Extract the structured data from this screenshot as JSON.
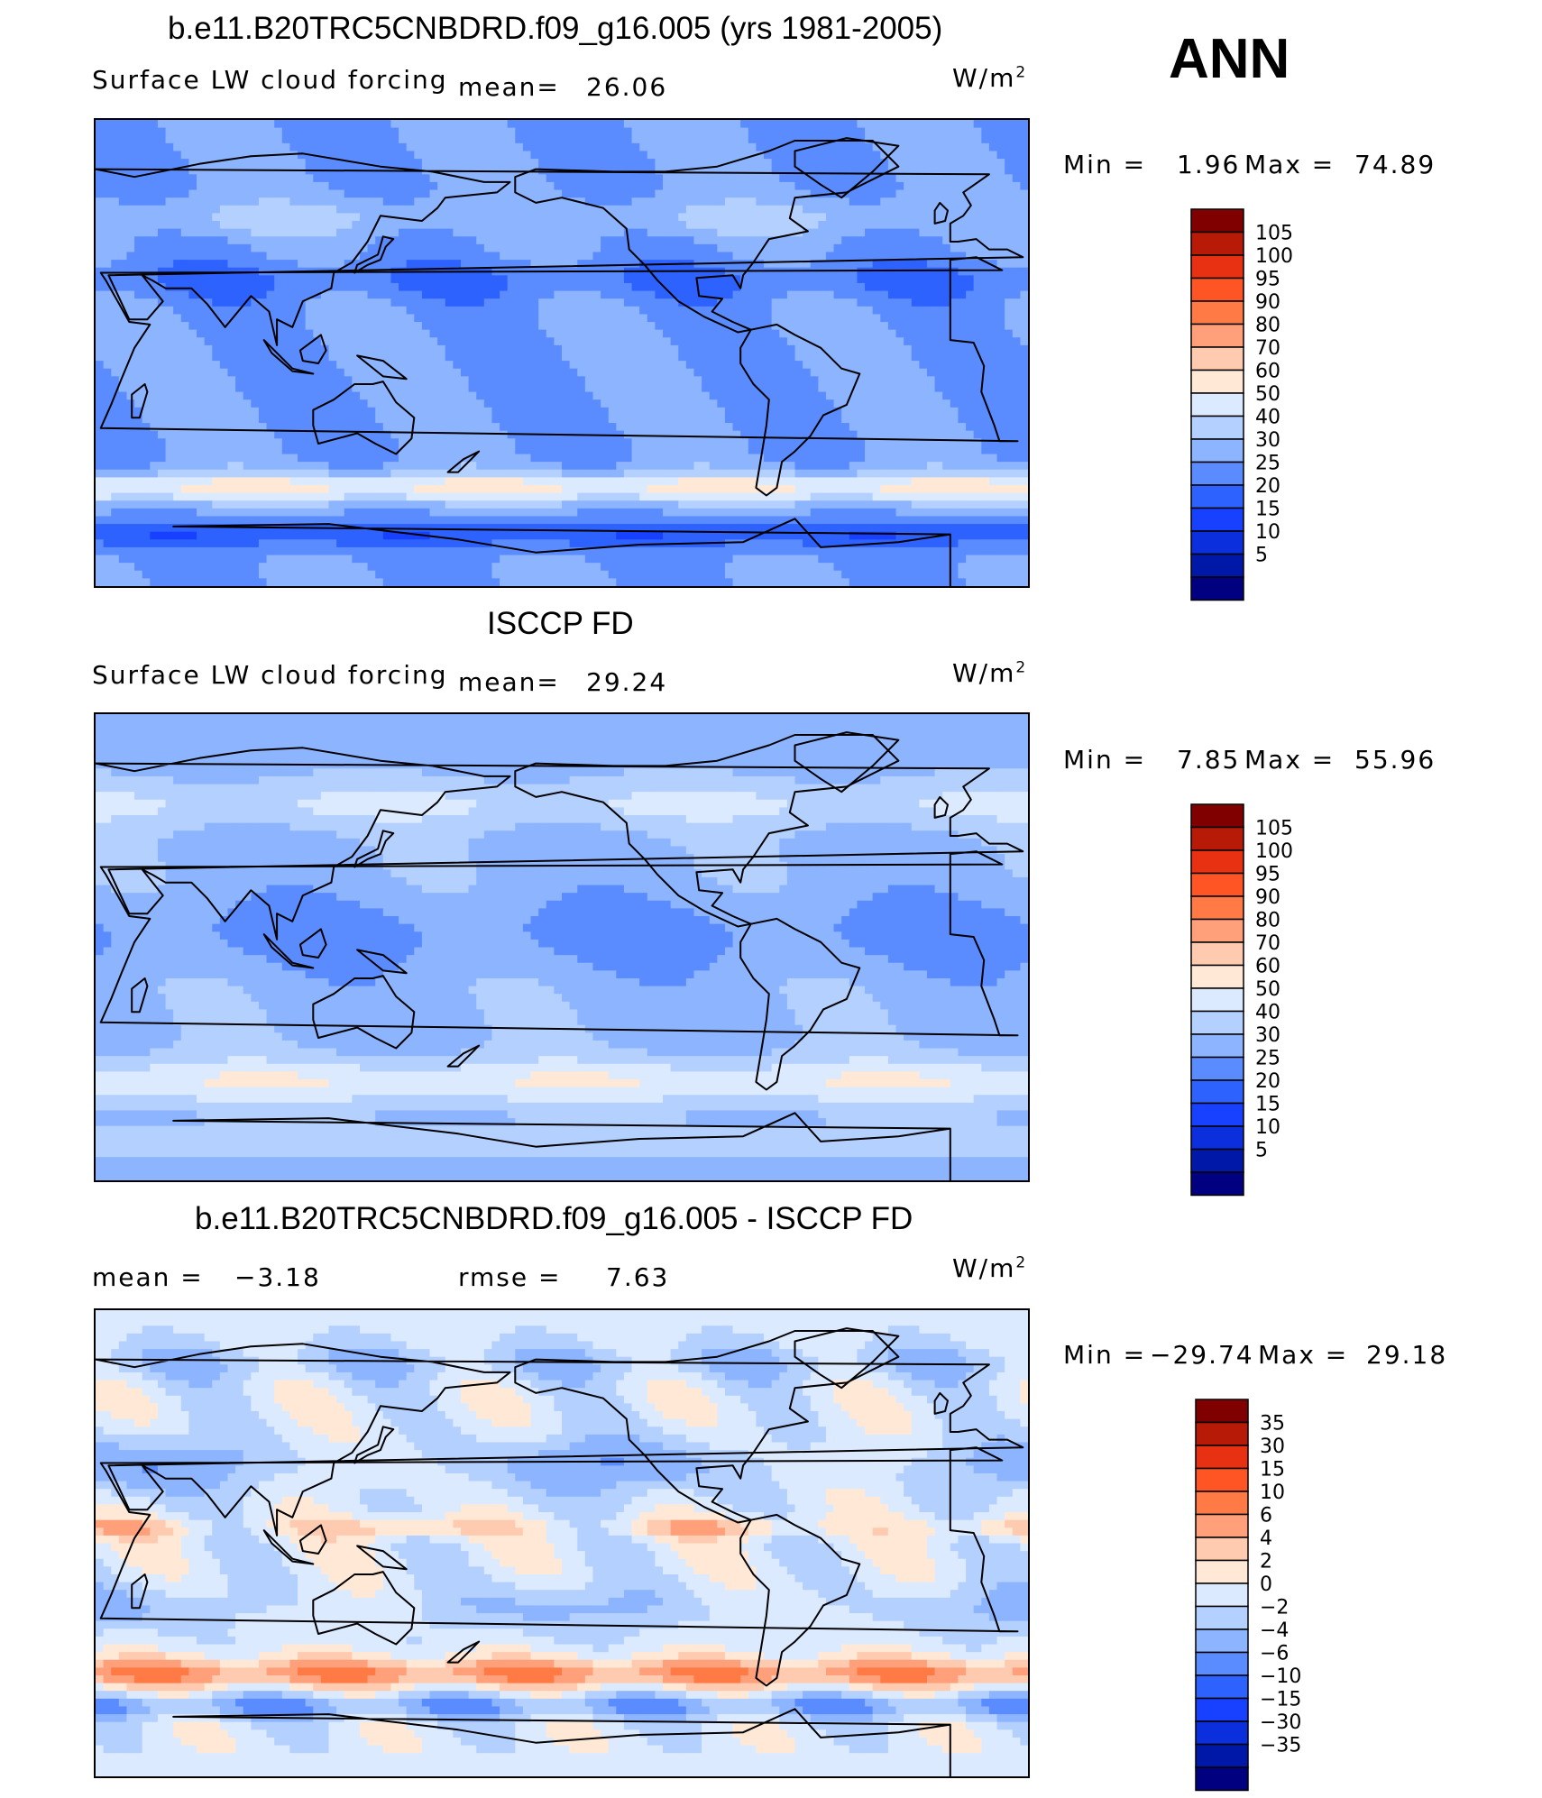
{
  "season": "ANN",
  "colors": {
    "model": [
      "#000080",
      "#0018a8",
      "#0b2fdc",
      "#1840ff",
      "#2e62ff",
      "#5a8cff",
      "#8cb4ff",
      "#b4d0ff",
      "#dceaff",
      "#ffe9d6",
      "#ffcbb0",
      "#ffa07a",
      "#ff7a45",
      "#ff5525",
      "#e83012",
      "#b81a08",
      "#800000"
    ],
    "diff": [
      "#000080",
      "#0018a8",
      "#0b2fdc",
      "#1840ff",
      "#2e62ff",
      "#5a8cff",
      "#8cb4ff",
      "#b4d0ff",
      "#dceaff",
      "#ffe9d6",
      "#ffcbb0",
      "#ffa07a",
      "#ff7a45",
      "#ff5525",
      "#e83012",
      "#b81a08",
      "#800000"
    ],
    "coastline": "#000000"
  },
  "panels": [
    {
      "title": "b.e11.B20TRC5CNBDRD.f09_g16.005 (yrs 1981-2005)",
      "left_label": "Surface LW cloud forcing",
      "mean_label": "mean=",
      "mean_value": "26.06",
      "units": "W/m",
      "units_exp": "2",
      "min_label": "Min =",
      "min_value": "1.96",
      "max_label": "Max =",
      "max_value": "74.89",
      "levels": [
        "105",
        "100",
        "95",
        "90",
        "80",
        "70",
        "60",
        "50",
        "40",
        "30",
        "25",
        "20",
        "15",
        "10",
        "5"
      ],
      "field": "model"
    },
    {
      "title": "ISCCP FD",
      "left_label": "Surface LW cloud forcing",
      "mean_label": "mean=",
      "mean_value": "29.24",
      "units": "W/m",
      "units_exp": "2",
      "min_label": "Min =",
      "min_value": "7.85",
      "max_label": "Max =",
      "max_value": "55.96",
      "levels": [
        "105",
        "100",
        "95",
        "90",
        "80",
        "70",
        "60",
        "50",
        "40",
        "30",
        "25",
        "20",
        "15",
        "10",
        "5"
      ],
      "field": "obs"
    },
    {
      "title": "b.e11.B20TRC5CNBDRD.f09_g16.005 - ISCCP FD",
      "mean_label": "mean =",
      "mean_value": "−3.18",
      "rmse_label": "rmse =",
      "rmse_value": "7.63",
      "units": "W/m",
      "units_exp": "2",
      "min_label": "Min =",
      "min_value": "−29.74",
      "max_label": "Max =",
      "max_value": "29.18",
      "levels": [
        "35",
        "30",
        "15",
        "10",
        "6",
        "4",
        "2",
        "0",
        "−2",
        "−4",
        "−6",
        "−10",
        "−15",
        "−30",
        "−35"
      ],
      "field": "diff"
    }
  ]
}
